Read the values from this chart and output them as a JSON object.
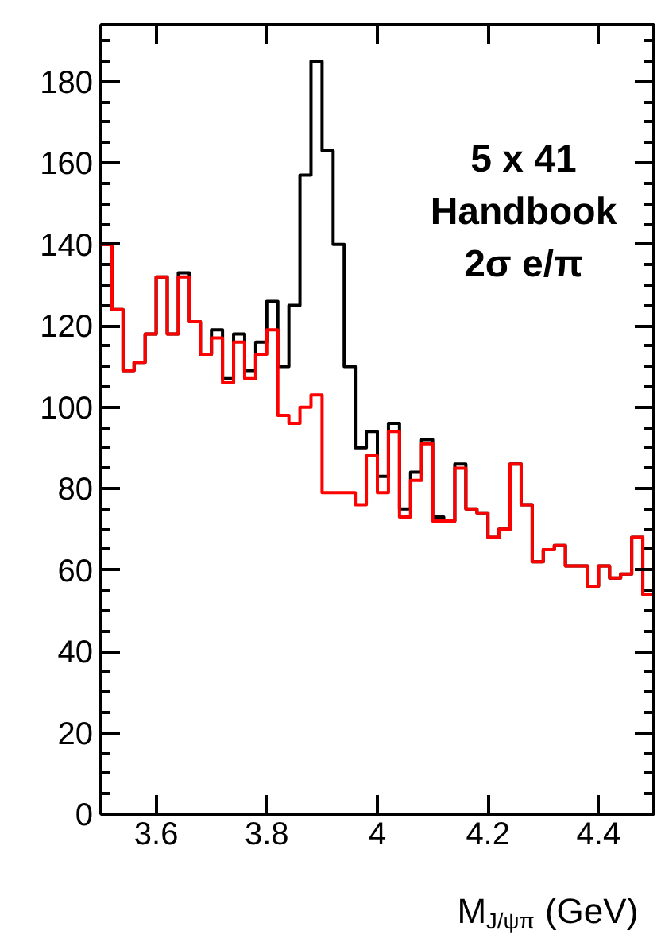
{
  "chart_data": {
    "type": "histogram",
    "xlabel": "M$_{J/ψπ}$ (GeV)",
    "annotations": [
      "5 x 41",
      "Handbook",
      "2σ e/π"
    ],
    "bins": [
      3.5,
      3.52,
      3.54,
      3.56,
      3.58,
      3.6,
      3.62,
      3.64,
      3.66,
      3.68,
      3.7,
      3.72,
      3.74,
      3.76,
      3.78,
      3.8,
      3.82,
      3.84,
      3.86,
      3.88,
      3.9,
      3.92,
      3.94,
      3.96,
      3.98,
      4.0,
      4.02,
      4.04,
      4.06,
      4.08,
      4.1,
      4.12,
      4.14,
      4.16,
      4.18,
      4.2,
      4.22,
      4.24,
      4.26,
      4.28,
      4.3,
      4.32,
      4.34,
      4.36,
      4.38,
      4.4,
      4.42,
      4.44,
      4.46,
      4.48,
      4.5
    ],
    "series": [
      {
        "color": "#000000",
        "values": [
          140,
          124,
          109,
          111,
          118,
          132,
          118,
          133,
          121,
          113,
          119,
          107,
          118,
          109,
          116,
          126,
          110,
          125,
          157,
          185,
          163,
          140,
          110,
          90,
          94,
          83,
          96,
          75,
          84,
          92,
          73,
          72,
          86,
          75,
          74,
          68,
          70,
          86,
          76,
          62,
          65,
          66,
          61,
          61,
          56,
          61,
          58,
          59,
          68,
          54
        ]
      },
      {
        "color": "#ff0000",
        "values": [
          140,
          124,
          109,
          111,
          118,
          132,
          118,
          132,
          121,
          113,
          117,
          106,
          116,
          107,
          113,
          119,
          98,
          96,
          100,
          103,
          79,
          79,
          79,
          76,
          88,
          79,
          94,
          73,
          82,
          91,
          72,
          72,
          85,
          75,
          74,
          68,
          70,
          86,
          76,
          62,
          65,
          66,
          61,
          61,
          56,
          61,
          58,
          59,
          68,
          54
        ]
      }
    ],
    "xlim": [
      3.5,
      4.5
    ],
    "ylim": [
      0,
      194
    ],
    "xticks": [
      3.6,
      3.8,
      4,
      4.2,
      4.4
    ],
    "yticks": [
      0,
      20,
      40,
      60,
      80,
      100,
      120,
      140,
      160,
      180
    ],
    "grid": false
  }
}
